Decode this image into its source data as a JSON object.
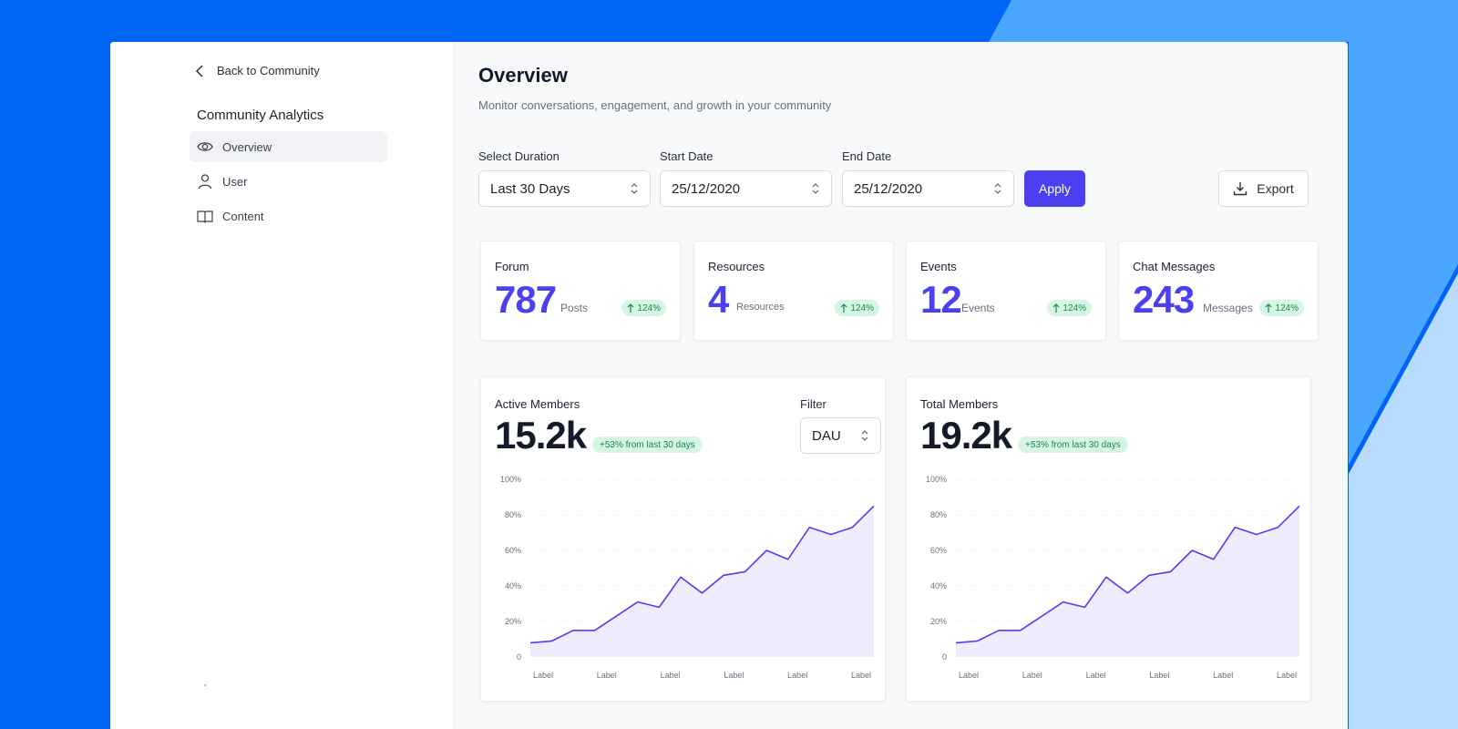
{
  "colors": {
    "brand": "#0064f5",
    "accent": "#4b3ff0",
    "positive_bg": "#d6f5e4",
    "positive_text": "#168a4a"
  },
  "sidebar": {
    "back_label": "Back to Community",
    "heading": "Community Analytics",
    "items": [
      {
        "label": "Overview",
        "icon": "eye-icon",
        "active": true
      },
      {
        "label": "User",
        "icon": "user-icon",
        "active": false
      },
      {
        "label": "Content",
        "icon": "book-icon",
        "active": false
      }
    ]
  },
  "header": {
    "title": "Overview",
    "subtitle": "Monitor conversations, engagement, and growth in your community"
  },
  "filters": {
    "duration": {
      "label": "Select Duration",
      "value": "Last 30 Days"
    },
    "start": {
      "label": "Start Date",
      "value": "25/12/2020"
    },
    "end": {
      "label": "End Date",
      "value": "25/12/2020"
    },
    "apply_label": "Apply",
    "export_label": "Export"
  },
  "stats": [
    {
      "title": "Forum",
      "value": "787",
      "unit": "Posts",
      "change": "124%"
    },
    {
      "title": "Resources",
      "value": "4",
      "unit": "Resources",
      "change": "124%"
    },
    {
      "title": "Events",
      "value": "12",
      "unit": "Events",
      "change": "124%"
    },
    {
      "title": "Chat Messages",
      "value": "243",
      "unit": "Messages",
      "change": "124%"
    }
  ],
  "charts_meta": {
    "active": {
      "title": "Active Members",
      "value": "15.2k",
      "badge": "+53% from last 30 days",
      "filter_label": "Filter",
      "filter_value": "DAU"
    },
    "total": {
      "title": "Total Members",
      "value": "19.2k",
      "badge": "+53% from last 30 days"
    }
  },
  "chart_data": [
    {
      "type": "area",
      "title": "Active Members",
      "y_ticks": [
        "100%",
        "80%",
        "60%",
        "40%",
        "20%",
        "0"
      ],
      "ylim": [
        0,
        100
      ],
      "x_tick_labels": [
        "Label",
        "Label",
        "Label",
        "Label",
        "Label",
        "Label"
      ],
      "grid": true,
      "series": [
        {
          "values": [
            8,
            9,
            15,
            15,
            23,
            31,
            28,
            45,
            36,
            46,
            48,
            60,
            55,
            73,
            69,
            73,
            85
          ]
        }
      ]
    },
    {
      "type": "area",
      "title": "Total Members",
      "y_ticks": [
        "100%",
        "80%",
        "60%",
        "40%",
        "20%",
        "0"
      ],
      "ylim": [
        0,
        100
      ],
      "x_tick_labels": [
        "Label",
        "Label",
        "Label",
        "Label",
        "Label",
        "Label"
      ],
      "grid": true,
      "series": [
        {
          "values": [
            8,
            9,
            15,
            15,
            23,
            31,
            28,
            45,
            36,
            46,
            48,
            60,
            55,
            73,
            69,
            73,
            85
          ]
        }
      ]
    }
  ]
}
